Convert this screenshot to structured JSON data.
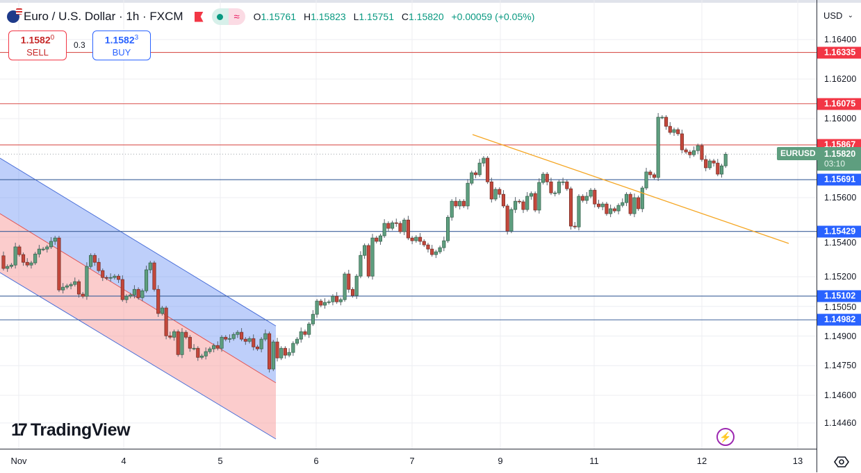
{
  "header": {
    "symbol_title": "Euro / U.S. Dollar · 1h · FXCM",
    "ohlc": {
      "o_label": "O",
      "o": "1.15761",
      "h_label": "H",
      "h": "1.15823",
      "l_label": "L",
      "l": "1.15751",
      "c_label": "C",
      "c": "1.15820",
      "change": "+0.00059 (+0.05%)"
    },
    "icons": [
      "eu-us-flag-icon",
      "red-flag-icon",
      "market-open-dot-icon",
      "wave-icon"
    ]
  },
  "trade": {
    "sell_price_main": "1.1582",
    "sell_price_sup": "0",
    "sell_label": "SELL",
    "spread": "0.3",
    "buy_price_main": "1.1582",
    "buy_price_sup": "3",
    "buy_label": "BUY"
  },
  "price_axis": {
    "currency": "USD"
  },
  "current": {
    "symbol": "EURUSD",
    "price": "1.15820",
    "countdown": "03:10"
  },
  "branding": {
    "logo_text": "TradingView"
  },
  "colors": {
    "up": "#5e9e7f",
    "down": "#c4473b",
    "resistance": "#f23645",
    "support": "#2962ff",
    "trendline": "#f5a623",
    "channel_upper_fill": "#6f94f5",
    "channel_lower_fill": "#f79a9a"
  },
  "chart_data": {
    "type": "candlestick",
    "title": "Euro / U.S. Dollar · 1h · FXCM",
    "timeframe": "1h",
    "first_open": 1.15306,
    "closes": [
      1.15242,
      1.15252,
      1.15259,
      1.15351,
      1.15312,
      1.15273,
      1.15259,
      1.1527,
      1.15315,
      1.1534,
      1.1534,
      1.15351,
      1.15379,
      1.15396,
      1.15133,
      1.15147,
      1.15154,
      1.15161,
      1.15175,
      1.15112,
      1.15101,
      1.15252,
      1.15308,
      1.15273,
      1.15231,
      1.15196,
      1.15193,
      1.15196,
      1.15203,
      1.15186,
      1.15084,
      1.15101,
      1.15108,
      1.15136,
      1.15094,
      1.15129,
      1.15235,
      1.1527,
      1.15136,
      1.15014,
      1.15042,
      1.14901,
      1.14894,
      1.14922,
      1.14806,
      1.14919,
      1.14894,
      1.14838,
      1.14838,
      1.14792,
      1.14799,
      1.14821,
      1.14835,
      1.14852,
      1.14838,
      1.14894,
      1.14884,
      1.14887,
      1.14908,
      1.14919,
      1.14884,
      1.14873,
      1.14887,
      1.14845,
      1.14835,
      1.14884,
      1.14912,
      1.14733,
      1.1487,
      1.14789,
      1.14838,
      1.14803,
      1.14817,
      1.14863,
      1.14884,
      1.14922,
      1.14908,
      1.14961,
      1.1501,
      1.15077,
      1.15056,
      1.1507,
      1.15073,
      1.15101,
      1.15073,
      1.15084,
      1.15214,
      1.15136,
      1.15105,
      1.15203,
      1.15308,
      1.15358,
      1.15203,
      1.15396,
      1.15379,
      1.15407,
      1.1547,
      1.15445,
      1.15473,
      1.1547,
      1.15428,
      1.15487,
      1.15396,
      1.15382,
      1.154,
      1.15379,
      1.15361,
      1.1534,
      1.15312,
      1.15326,
      1.15347,
      1.15382,
      1.15501,
      1.15582,
      1.15558,
      1.15582,
      1.15558,
      1.15673,
      1.15726,
      1.15716,
      1.15775,
      1.158,
      1.1568,
      1.15593,
      1.15642,
      1.15617,
      1.15558,
      1.15431,
      1.1554,
      1.15582,
      1.15579,
      1.1554,
      1.15607,
      1.15621,
      1.15537,
      1.15677,
      1.15719,
      1.1568,
      1.15624,
      1.15624,
      1.1568,
      1.1568,
      1.15645,
      1.15456,
      1.15452,
      1.15607,
      1.15586,
      1.15607,
      1.15638,
      1.15568,
      1.15554,
      1.15568,
      1.15519,
      1.15544,
      1.15533,
      1.15561,
      1.15575,
      1.15617,
      1.15519,
      1.156,
      1.15544,
      1.15649,
      1.1573,
      1.15716,
      1.15702,
      1.16007,
      1.16007,
      1.15961,
      1.1593,
      1.15944,
      1.15923,
      1.15842,
      1.15831,
      1.15817,
      1.15838,
      1.15863,
      1.15793,
      1.15751,
      1.15786,
      1.15775,
      1.15719,
      1.15761,
      1.1582
    ],
    "last_candle": {
      "open": 1.15761,
      "high": 1.15823,
      "low": 1.15751,
      "close": 1.1582
    },
    "y_ticks": [
      "1.16400",
      "1.16200",
      "1.16000",
      "1.15600",
      "1.15400",
      "1.15200",
      "1.15050",
      "1.14900",
      "1.14750",
      "1.14600",
      "1.14460"
    ],
    "x_ticks": [
      "Nov",
      "4",
      "5",
      "6",
      "7",
      "9",
      "11",
      "12",
      "13"
    ],
    "ylim": [
      1.1432,
      1.166
    ],
    "grid": true,
    "levels": [
      {
        "price": "1.16335",
        "kind": "resistance"
      },
      {
        "price": "1.16075",
        "kind": "resistance"
      },
      {
        "price": "1.15867",
        "kind": "resistance"
      },
      {
        "price": "1.15691",
        "kind": "support"
      },
      {
        "price": "1.15429",
        "kind": "support"
      },
      {
        "price": "1.15102",
        "kind": "support"
      },
      {
        "price": "1.14982",
        "kind": "support"
      }
    ],
    "drawings": [
      "descending-regression-channel",
      "descending-trendline"
    ]
  }
}
